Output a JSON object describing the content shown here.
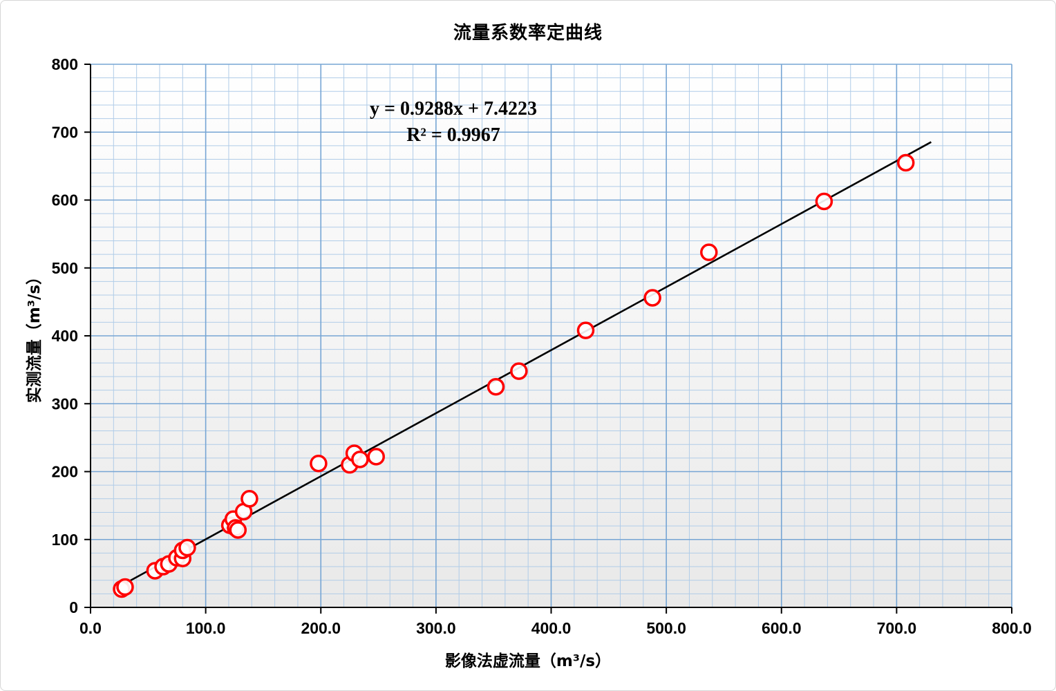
{
  "title": "流量系数率定曲线",
  "chart_data": {
    "type": "scatter",
    "title": "流量系数率定曲线",
    "xlabel": "影像法虚流量（m³/s）",
    "ylabel": "实测流量（m³/s）",
    "xlim": [
      0,
      800
    ],
    "ylim": [
      0,
      800
    ],
    "x_ticks": [
      "0.0",
      "100.0",
      "200.0",
      "300.0",
      "400.0",
      "500.0",
      "600.0",
      "700.0",
      "800.0"
    ],
    "y_ticks": [
      "0",
      "100",
      "200",
      "300",
      "400",
      "500",
      "600",
      "700",
      "800"
    ],
    "grid": true,
    "minor_grid_step": 20,
    "major_grid_step": 100,
    "legend_position": "none",
    "points": [
      [
        27,
        27
      ],
      [
        30,
        30
      ],
      [
        56,
        54
      ],
      [
        63,
        60
      ],
      [
        68,
        64
      ],
      [
        75,
        73
      ],
      [
        80,
        72
      ],
      [
        80,
        84
      ],
      [
        84,
        88
      ],
      [
        121,
        121
      ],
      [
        124,
        130
      ],
      [
        126,
        117
      ],
      [
        128,
        114
      ],
      [
        133,
        141
      ],
      [
        138,
        160
      ],
      [
        198,
        212
      ],
      [
        225,
        210
      ],
      [
        229,
        227
      ],
      [
        234,
        218
      ],
      [
        248,
        222
      ],
      [
        352,
        325
      ],
      [
        372,
        348
      ],
      [
        430,
        408
      ],
      [
        488,
        456
      ],
      [
        537,
        523
      ],
      [
        637,
        598
      ],
      [
        708,
        655
      ]
    ],
    "trendline": {
      "slope": 0.9288,
      "intercept": 7.4223,
      "x_start": 22,
      "x_end": 730,
      "equation_label": "y = 0.9288x + 7.4223",
      "r2_label": "R² = 0.9967"
    },
    "marker": {
      "shape": "open-circle",
      "color": "#ff0000",
      "radius": 11,
      "stroke_width": 3.5
    },
    "colors": {
      "minor_grid": "#b0cce8",
      "major_grid": "#76a5d4",
      "axis": "#000000",
      "trend_line": "#000000",
      "plot_bg_top": "#ffffff",
      "plot_bg_bottom": "#e9e9e9"
    }
  }
}
